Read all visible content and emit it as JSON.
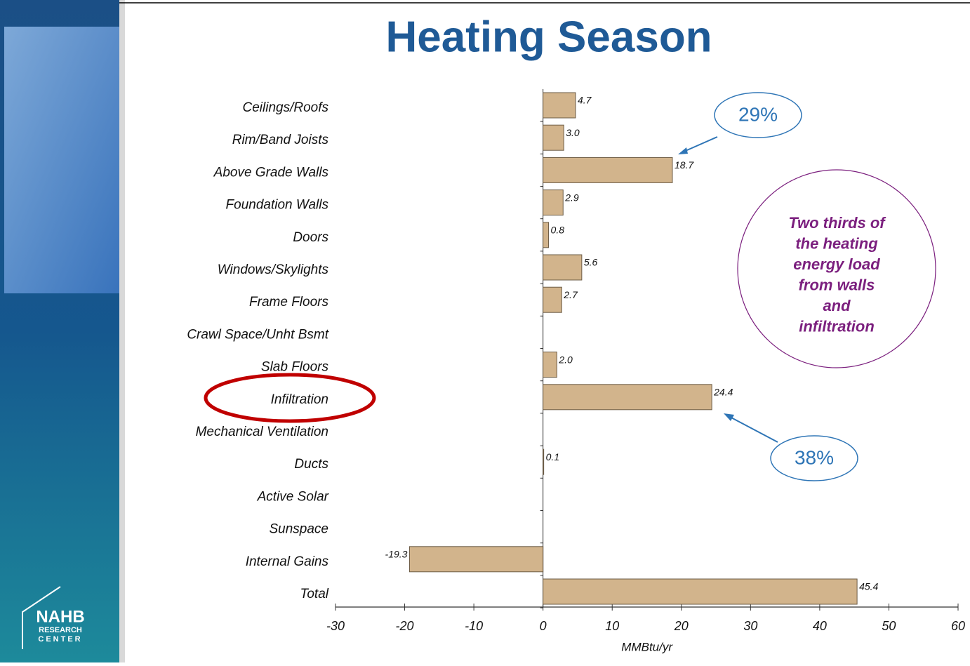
{
  "chart_data": {
    "type": "bar",
    "orientation": "horizontal",
    "title": "Heating Season",
    "categories": [
      "Ceilings/Roofs",
      "Rim/Band Joists",
      "Above Grade Walls",
      "Foundation Walls",
      "Doors",
      "Windows/Skylights",
      "Frame Floors",
      "Crawl Space/Unht Bsmt",
      "Slab Floors",
      "Infiltration",
      "Mechanical Ventilation",
      "Ducts",
      "Active Solar",
      "Sunspace",
      "Internal Gains",
      "Total"
    ],
    "values": [
      4.7,
      3.0,
      18.7,
      2.9,
      0.8,
      5.6,
      2.7,
      null,
      2.0,
      24.4,
      null,
      0.1,
      null,
      null,
      -19.3,
      45.4
    ],
    "value_labels": [
      "4.7",
      "3.0",
      "18.7",
      "2.9",
      "0.8",
      "5.6",
      "2.7",
      null,
      "2.0",
      "24.4",
      null,
      "0.1",
      null,
      null,
      "-19.3",
      "45.4"
    ],
    "color": "#d2b48c",
    "xlabel": "MMBtu/yr",
    "xlim": [
      -30,
      60
    ],
    "xticks": [
      -30,
      -20,
      -10,
      0,
      10,
      20,
      30,
      40,
      50,
      60
    ],
    "annotations": {
      "walls_share": "29%",
      "infiltration_share": "38%",
      "note": [
        "Two thirds of",
        "the heating",
        "energy load",
        "from walls",
        "and",
        "infiltration"
      ]
    }
  },
  "logo": {
    "name": "NAHB",
    "line1": "RESEARCH",
    "line2": "CENTER"
  }
}
